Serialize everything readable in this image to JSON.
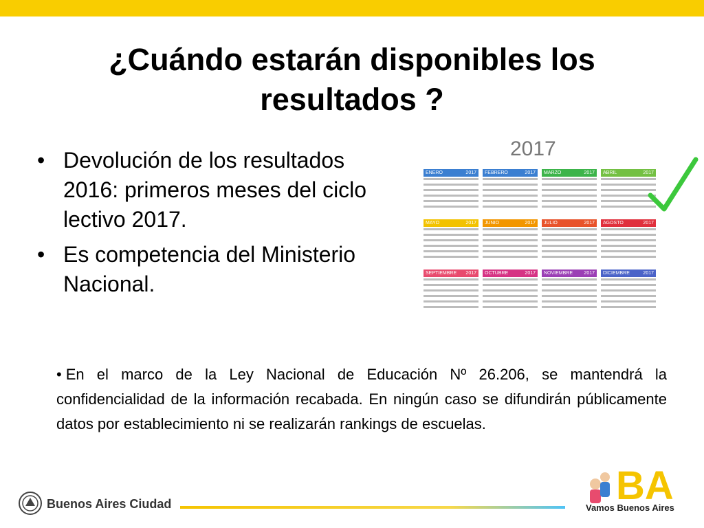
{
  "colors": {
    "topbar": "#f9cd00",
    "check": "#3cc83c",
    "ba_yellow": "#f5c400",
    "ba_cyan": "#4fc3f7"
  },
  "title": "¿Cuándo estarán disponibles los resultados ?",
  "bullet_symbol": "•",
  "bullets": [
    "Devolución de los resultados 2016: primeros meses del ciclo lectivo 2017.",
    "Es competencia del Ministerio Nacional."
  ],
  "note": "En el marco de la Ley Nacional de Educación Nº 26.206, se mantendrá la confidencialidad de la información recabada. En ningún caso se difundirán públicamente datos por establecimiento ni se realizarán rankings de escuelas.",
  "calendar": {
    "year": "2017",
    "months": [
      {
        "name": "ENERO",
        "year": "2017",
        "color": "#3b7fd1"
      },
      {
        "name": "FEBRERO",
        "year": "2017",
        "color": "#3b7fd1"
      },
      {
        "name": "MARZO",
        "year": "2017",
        "color": "#3cb44a"
      },
      {
        "name": "ABRIL",
        "year": "2017",
        "color": "#74c043"
      },
      {
        "name": "MAYO",
        "year": "2017",
        "color": "#f2c200"
      },
      {
        "name": "JUNIO",
        "year": "2017",
        "color": "#f29600"
      },
      {
        "name": "JULIO",
        "year": "2017",
        "color": "#e8532b"
      },
      {
        "name": "AGOSTO",
        "year": "2017",
        "color": "#e0303d"
      },
      {
        "name": "SEPTIEMBRE",
        "year": "2017",
        "color": "#e84b6e"
      },
      {
        "name": "OCTUBRE",
        "year": "2017",
        "color": "#d63384"
      },
      {
        "name": "NOVIEMBRE",
        "year": "2017",
        "color": "#9b3fb5"
      },
      {
        "name": "DICIEMBRE",
        "year": "2017",
        "color": "#4b63c8"
      }
    ]
  },
  "footer": {
    "left_logo": "Buenos Aires Ciudad",
    "right_logo_mark": "BA",
    "right_logo": "Vamos Buenos Aires"
  }
}
